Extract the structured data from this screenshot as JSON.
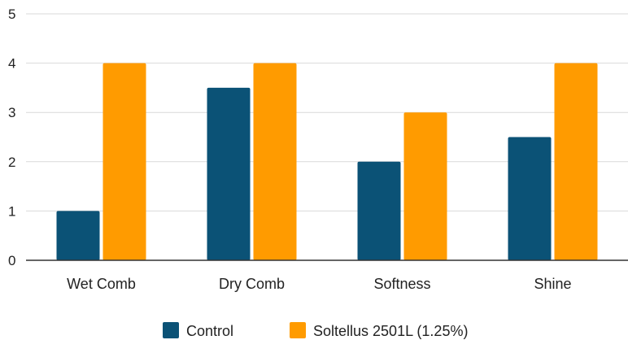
{
  "chart_data": {
    "type": "bar",
    "categories": [
      "Wet Comb",
      "Dry Comb",
      "Softness",
      "Shine"
    ],
    "series": [
      {
        "name": "Control",
        "values": [
          1,
          3.5,
          2,
          2.5
        ],
        "color": "#0b5276"
      },
      {
        "name": "Soltellus 2501L (1.25%)",
        "values": [
          4,
          4,
          3,
          4
        ],
        "color": "#ff9b00"
      }
    ],
    "title": "",
    "xlabel": "",
    "ylabel": "",
    "ylim": [
      0,
      5
    ],
    "yticks": [
      "0",
      "1",
      "2",
      "3",
      "4",
      "5"
    ],
    "grid": true,
    "legend_position": "bottom"
  }
}
